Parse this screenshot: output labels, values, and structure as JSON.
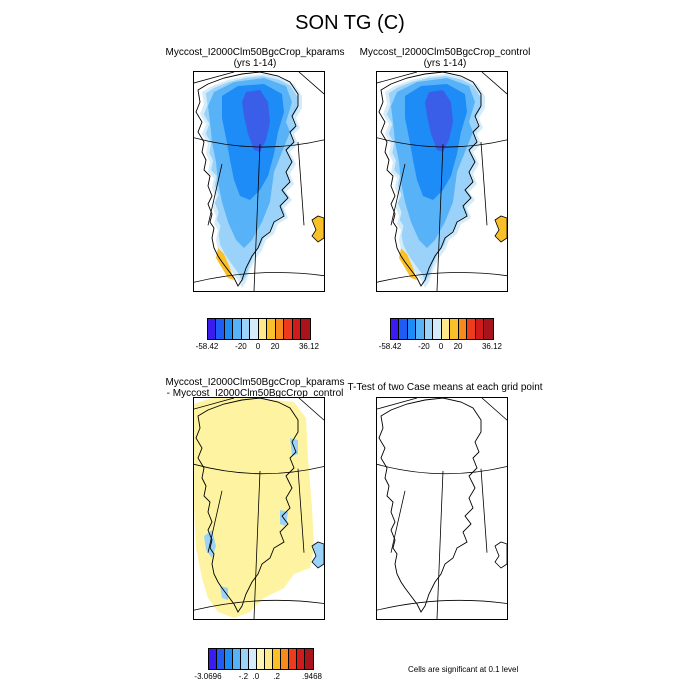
{
  "title": "SON TG (C)",
  "panels": {
    "kparams": {
      "title": "Myccost_I2000Clm50BgcCrop_kparams",
      "subtitle": "(yrs 1-14)"
    },
    "control": {
      "title": "Myccost_I2000Clm50BgcCrop_control",
      "subtitle": "(yrs 1-14)"
    },
    "diff": {
      "title_line1": "Myccost_I2000Clm50BgcCrop_kparams",
      "title_line2": "- Myccost_I2000Clm50BgcCrop_control"
    },
    "ttest": {
      "title": "T-Test of two Case means at each grid point"
    }
  },
  "colorbar_top": {
    "colors": [
      "#3a1cf0",
      "#1f5cf5",
      "#1e8cf7",
      "#58b2f8",
      "#9ad2f9",
      "#d4ecf9",
      "#fde88c",
      "#f9c02a",
      "#f68a1c",
      "#ee3b1e",
      "#d11a1a",
      "#a8141c"
    ],
    "labels": [
      "-58.42",
      "-20",
      "0",
      "20",
      "36.12"
    ]
  },
  "colorbar_diff": {
    "colors": [
      "#3a1cf0",
      "#1f5cf5",
      "#1e8cf7",
      "#58b2f8",
      "#9ad2f9",
      "#d4ecf9",
      "#fef6b0",
      "#fde88c",
      "#f9c02a",
      "#f68a1c",
      "#ee3b1e",
      "#d11a1a",
      "#a8141c"
    ],
    "labels": [
      "-3.0696",
      "-.2",
      ".0",
      ".2",
      ".9468"
    ]
  },
  "note": "Cells are significant at 0.1 level",
  "map_colors": {
    "ocean": "#ffffff",
    "coast_pale": "#d4ecf9",
    "light_blue": "#9ad2f9",
    "mid_blue": "#58b2f8",
    "blue": "#1e8cf7",
    "deep_blue": "#3b5ee8",
    "warm": "#f9c02a",
    "diff_yellow": "#fdf3a0",
    "diff_blue": "#9ad2f9"
  }
}
